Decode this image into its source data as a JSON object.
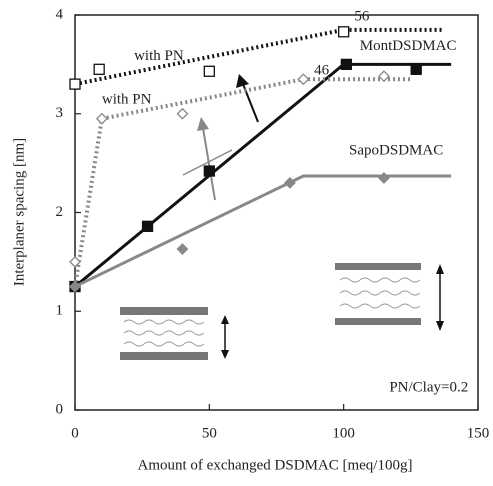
{
  "chart_data": {
    "type": "scatter",
    "x_label": "Amount of exchanged DSDMAC [meq/100g]",
    "y_label": "Interplaner spacing [nm]",
    "xlim": [
      0,
      150
    ],
    "ylim": [
      0,
      4
    ],
    "xticks": [
      0,
      50,
      100,
      150
    ],
    "yticks": [
      0,
      1,
      2,
      3,
      4
    ],
    "series": [
      {
        "name": "with PN",
        "color": "#111111",
        "marker": "open-square",
        "dash": "dotted",
        "x": [
          0,
          9,
          50,
          100
        ],
        "y": [
          3.3,
          3.45,
          3.43,
          3.83
        ],
        "line_x": [
          0,
          100,
          137
        ],
        "line_y": [
          3.3,
          3.85,
          3.85
        ]
      },
      {
        "name": "MontDSDMAC",
        "color": "#111111",
        "marker": "filled-square",
        "dash": "solid",
        "x": [
          0,
          27,
          50,
          101,
          127
        ],
        "y": [
          1.25,
          1.86,
          2.42,
          3.5,
          3.45
        ],
        "line_x": [
          0,
          100,
          140
        ],
        "line_y": [
          1.25,
          3.5,
          3.5
        ]
      },
      {
        "name": "with PN",
        "color": "#888888",
        "marker": "open-diamond",
        "dash": "dotted",
        "x": [
          0,
          10,
          40,
          85,
          115
        ],
        "y": [
          1.5,
          2.95,
          3.0,
          3.35,
          3.38
        ],
        "line_x": [
          0,
          10,
          85,
          125
        ],
        "line_y": [
          1.25,
          2.95,
          3.35,
          3.35
        ]
      },
      {
        "name": "SapoDSDMAC",
        "color": "#888888",
        "marker": "filled-diamond",
        "dash": "solid",
        "x": [
          0,
          40,
          80,
          115
        ],
        "y": [
          1.25,
          1.63,
          2.3,
          2.35
        ],
        "line_x": [
          0,
          85,
          140
        ],
        "line_y": [
          1.25,
          2.37,
          2.37
        ]
      }
    ],
    "annotations": [
      {
        "text": "56",
        "x": 104,
        "y": 3.98
      },
      {
        "text": "46",
        "x": 89,
        "y": 3.43
      },
      {
        "text": "PN/Clay=0.2",
        "x": 117,
        "y": 0.22
      }
    ]
  }
}
